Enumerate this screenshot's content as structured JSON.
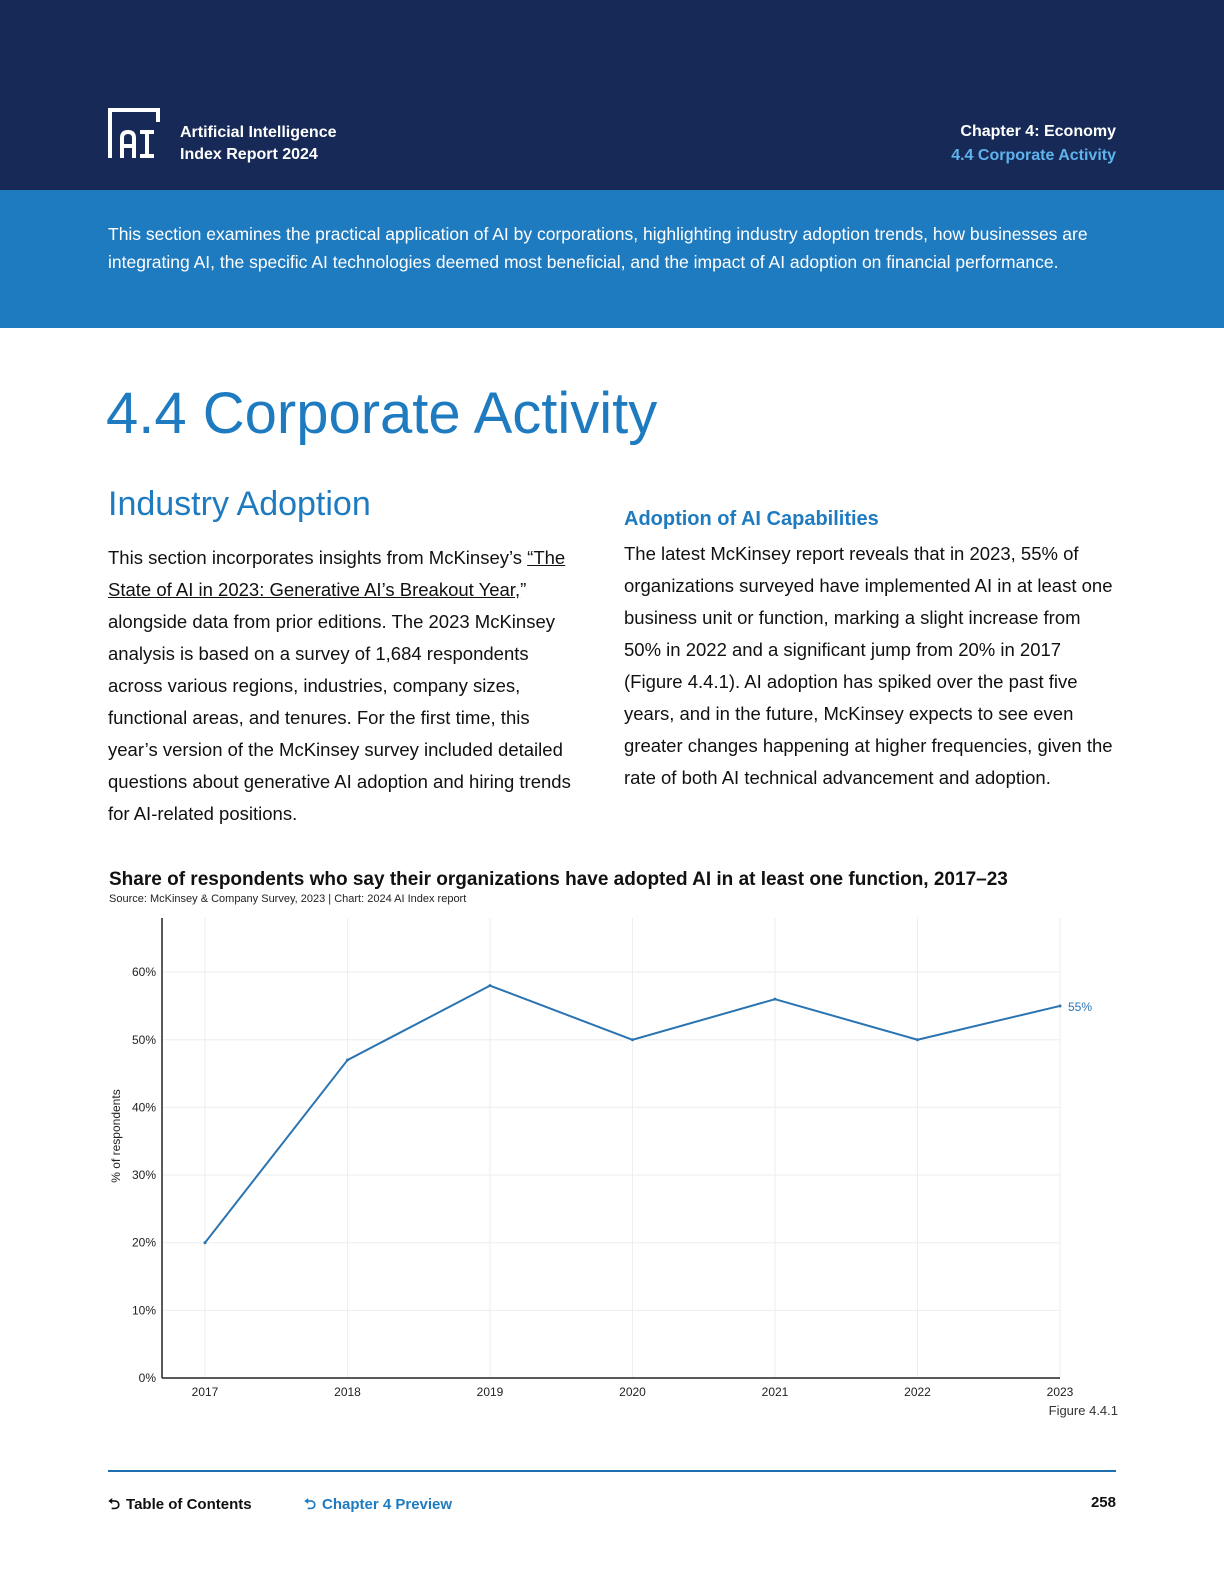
{
  "header": {
    "brand_line1": "Artificial Intelligence",
    "brand_line2": "Index Report 2024",
    "chapter": "Chapter 4: Economy",
    "section": "4.4 Corporate Activity"
  },
  "intro": "This section examines the practical application of AI by corporations, highlighting industry adoption trends, how businesses are integrating AI, the specific AI technologies deemed most beneficial, and the impact of AI adoption on financial performance.",
  "main": {
    "section_title": "4.4 Corporate Activity",
    "subsection_title": "Industry Adoption",
    "left_para_pre": "This section incorporates insights from McKinsey’s ",
    "left_para_link": "“The State of AI in 2023: Generative AI’s Breakout Year,",
    "left_para_post": "” alongside data from prior editions. The 2023 McKinsey analysis is based on a survey of 1,684 respondents across various regions, industries, company sizes, functional areas, and tenures. For the first time, this year’s version of the McKinsey survey included detailed questions about generative AI adoption and hiring trends for AI-related positions.",
    "right_title": "Adoption of AI Capabilities",
    "right_para": "The latest McKinsey report reveals that in 2023, 55% of organizations surveyed have implemented AI in at least one business unit or function, marking a slight increase from 50% in 2022 and a significant jump from 20% in 2017 (Figure 4.4.1). AI adoption has spiked over the past five years, and in the future, McKinsey expects to see even greater changes happening at higher frequencies, given the rate of both AI technical advancement and adoption."
  },
  "chart_data": {
    "type": "line",
    "title": "Share of respondents who say their organizations have adopted AI in at least one function, 2017–23",
    "source": "Source: McKinsey & Company Survey, 2023 | Chart: 2024 AI Index report",
    "xlabel": "",
    "ylabel": "% of respondents",
    "x": [
      "2017",
      "2018",
      "2019",
      "2020",
      "2021",
      "2022",
      "2023"
    ],
    "series": [
      {
        "values": [
          20,
          47,
          58,
          50,
          56,
          50,
          55
        ]
      }
    ],
    "ylim": [
      0,
      68
    ],
    "yticks": [
      0,
      10,
      20,
      30,
      40,
      50,
      60
    ],
    "ytick_labels": [
      "0%",
      "10%",
      "20%",
      "30%",
      "40%",
      "50%",
      "60%"
    ],
    "end_label": "55%",
    "line_color": "#2a74b2",
    "grid": true
  },
  "figure_label": "Figure 4.4.1",
  "footer": {
    "toc": "Table of Contents",
    "chapter_preview": "Chapter 4 Preview",
    "page": "258"
  },
  "colors": {
    "header_bg": "#172a57",
    "band_bg": "#1f7bc0",
    "accent": "#1f7bc0"
  }
}
